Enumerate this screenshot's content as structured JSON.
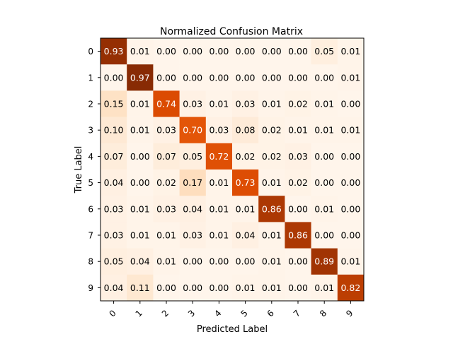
{
  "chart_data": {
    "type": "heatmap",
    "title": "Normalized Confusion Matrix",
    "xlabel": "Predicted Label",
    "ylabel": "True Label",
    "x_categories": [
      "0",
      "1",
      "2",
      "3",
      "4",
      "5",
      "6",
      "7",
      "8",
      "9"
    ],
    "y_categories": [
      "0",
      "1",
      "2",
      "3",
      "4",
      "5",
      "6",
      "7",
      "8",
      "9"
    ],
    "values": [
      [
        0.93,
        0.01,
        0.0,
        0.0,
        0.0,
        0.0,
        0.0,
        0.0,
        0.05,
        0.01
      ],
      [
        0.0,
        0.97,
        0.0,
        0.0,
        0.0,
        0.0,
        0.0,
        0.0,
        0.0,
        0.01
      ],
      [
        0.15,
        0.01,
        0.74,
        0.03,
        0.01,
        0.03,
        0.01,
        0.02,
        0.01,
        0.0
      ],
      [
        0.1,
        0.01,
        0.03,
        0.7,
        0.03,
        0.08,
        0.02,
        0.01,
        0.01,
        0.01
      ],
      [
        0.07,
        0.0,
        0.07,
        0.05,
        0.72,
        0.02,
        0.02,
        0.03,
        0.0,
        0.0
      ],
      [
        0.04,
        0.0,
        0.02,
        0.17,
        0.01,
        0.73,
        0.01,
        0.02,
        0.0,
        0.0
      ],
      [
        0.03,
        0.01,
        0.03,
        0.04,
        0.01,
        0.01,
        0.86,
        0.0,
        0.01,
        0.0
      ],
      [
        0.03,
        0.01,
        0.01,
        0.03,
        0.01,
        0.04,
        0.01,
        0.86,
        0.0,
        0.0
      ],
      [
        0.05,
        0.04,
        0.01,
        0.0,
        0.0,
        0.0,
        0.01,
        0.0,
        0.89,
        0.01
      ],
      [
        0.04,
        0.11,
        0.0,
        0.0,
        0.0,
        0.01,
        0.01,
        0.0,
        0.01,
        0.82
      ]
    ],
    "value_range": [
      0,
      1
    ],
    "colormap": "Oranges",
    "colors": {
      "low": "#fff5eb",
      "high": "#7f2704"
    },
    "grid": false,
    "legend": "none"
  }
}
